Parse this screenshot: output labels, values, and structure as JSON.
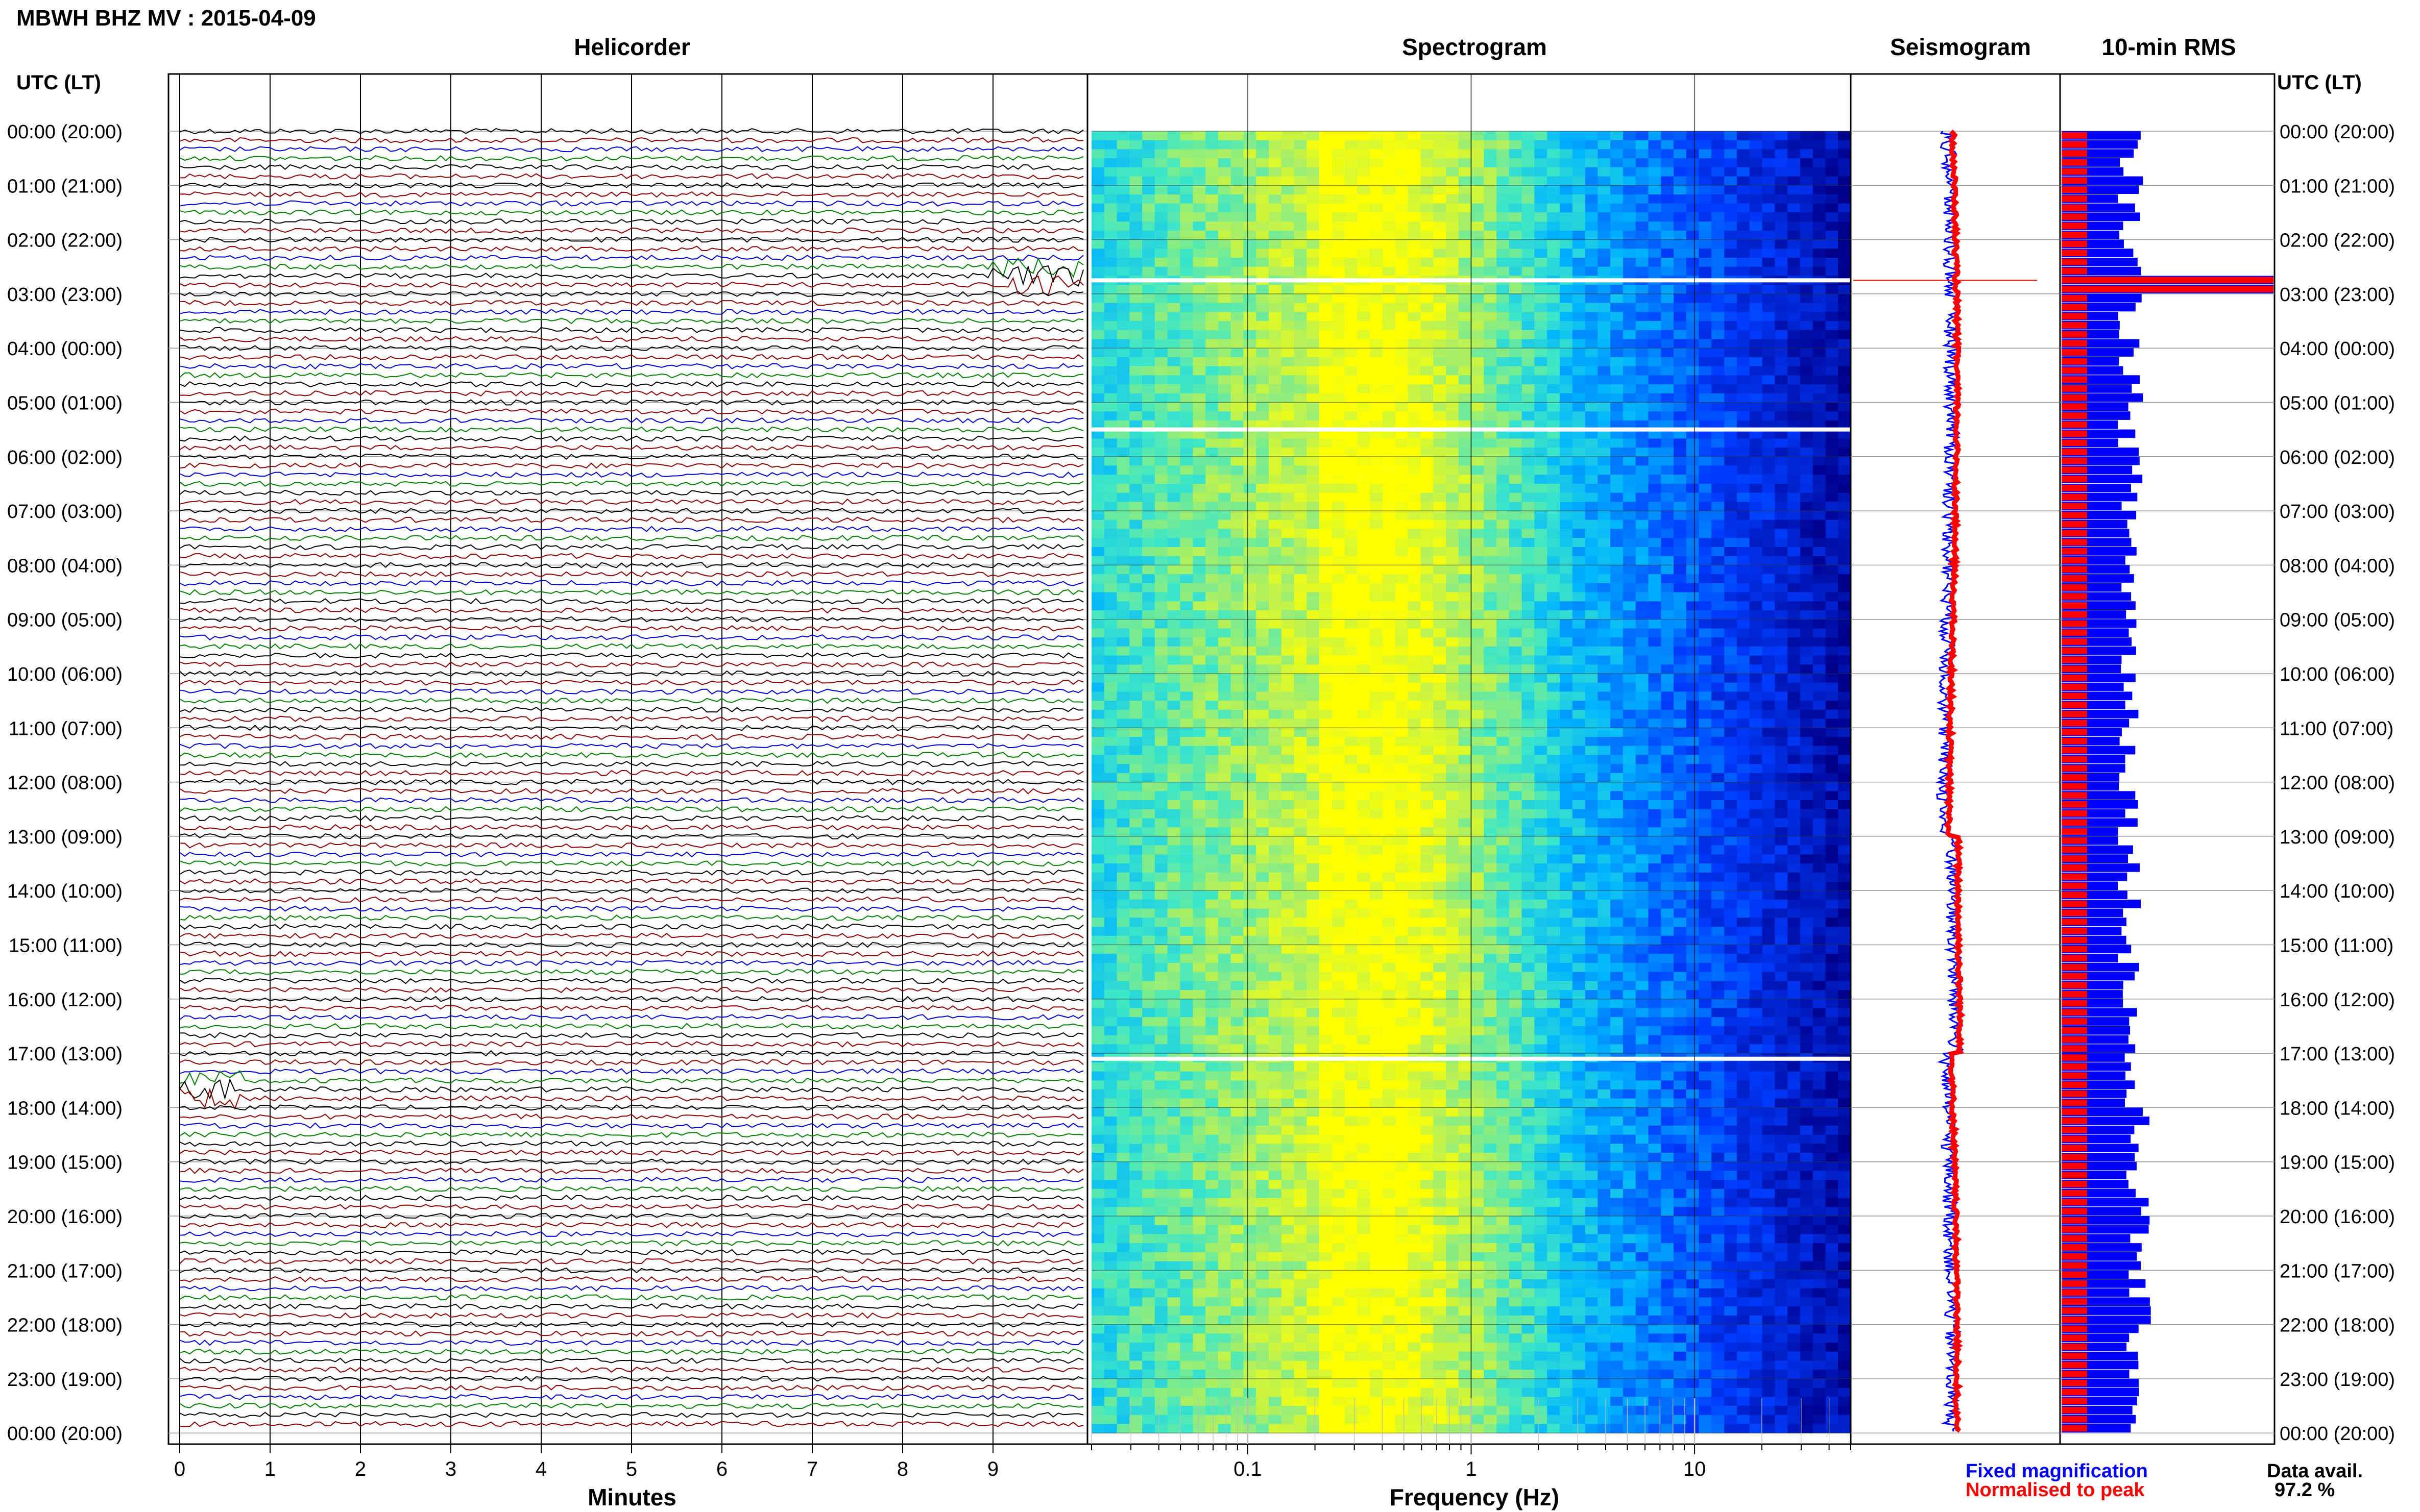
{
  "figure": {
    "title": "MBWH BHZ MV : 2015-04-09",
    "left_time_header": "UTC (LT)",
    "right_time_header": "UTC (LT)",
    "colors": {
      "background": "#ffffff",
      "helicorder_traces": [
        "#000000",
        "#8b0000",
        "#0000cd",
        "#008000"
      ],
      "fixed_magnification": "#0000ff",
      "normalised_to_peak": "#ff0000",
      "spectrogram_low": "#00008b",
      "spectrogram_high": "#ffff00"
    }
  },
  "time_labels": [
    "00:00 (20:00)",
    "01:00 (21:00)",
    "02:00 (22:00)",
    "03:00 (23:00)",
    "04:00 (00:00)",
    "05:00 (01:00)",
    "06:00 (02:00)",
    "07:00 (03:00)",
    "08:00 (04:00)",
    "09:00 (05:00)",
    "10:00 (06:00)",
    "11:00 (07:00)",
    "12:00 (08:00)",
    "13:00 (09:00)",
    "14:00 (10:00)",
    "15:00 (11:00)",
    "16:00 (12:00)",
    "17:00 (13:00)",
    "18:00 (14:00)",
    "19:00 (15:00)",
    "20:00 (16:00)",
    "21:00 (17:00)",
    "22:00 (18:00)",
    "23:00 (19:00)",
    "00:00 (20:00)"
  ],
  "legend": {
    "fixed": "Fixed magnification",
    "normalised": "Normalised to peak"
  },
  "availability": {
    "label": "Data avail.",
    "value": "97.2 %"
  },
  "chart_data": [
    {
      "type": "line",
      "title": "Helicorder",
      "xlabel": "Minutes",
      "ylabel": "UTC (LT)",
      "x_ticks": [
        "0",
        "1",
        "2",
        "3",
        "4",
        "5",
        "6",
        "7",
        "8",
        "9"
      ],
      "xlim": [
        0,
        10
      ],
      "traces_per_hour": 6,
      "hours": 24,
      "events": [
        {
          "hour": 2,
          "minute_start": 9.0,
          "minute_end": 10.0,
          "note_free": true
        },
        {
          "hour": 17,
          "minute_start": 0.0,
          "minute_end": 0.7,
          "note_free": true
        }
      ]
    },
    {
      "type": "heatmap",
      "title": "Spectrogram",
      "xlabel": "Frequency (Hz)",
      "x_ticks": [
        "0.1",
        "1",
        "10"
      ],
      "x_scale": "log",
      "xlim": [
        0.02,
        50
      ],
      "gaps_hours": [
        2.75,
        5.5,
        17.1
      ]
    },
    {
      "type": "line",
      "title": "Seismogram",
      "series": [
        {
          "name": "Fixed magnification"
        },
        {
          "name": "Normalised to peak"
        }
      ]
    },
    {
      "type": "bar",
      "title": "10-min RMS",
      "series": [
        {
          "name": "Fixed magnification"
        },
        {
          "name": "Normalised to peak"
        }
      ],
      "peak_hour": 2.75
    }
  ]
}
